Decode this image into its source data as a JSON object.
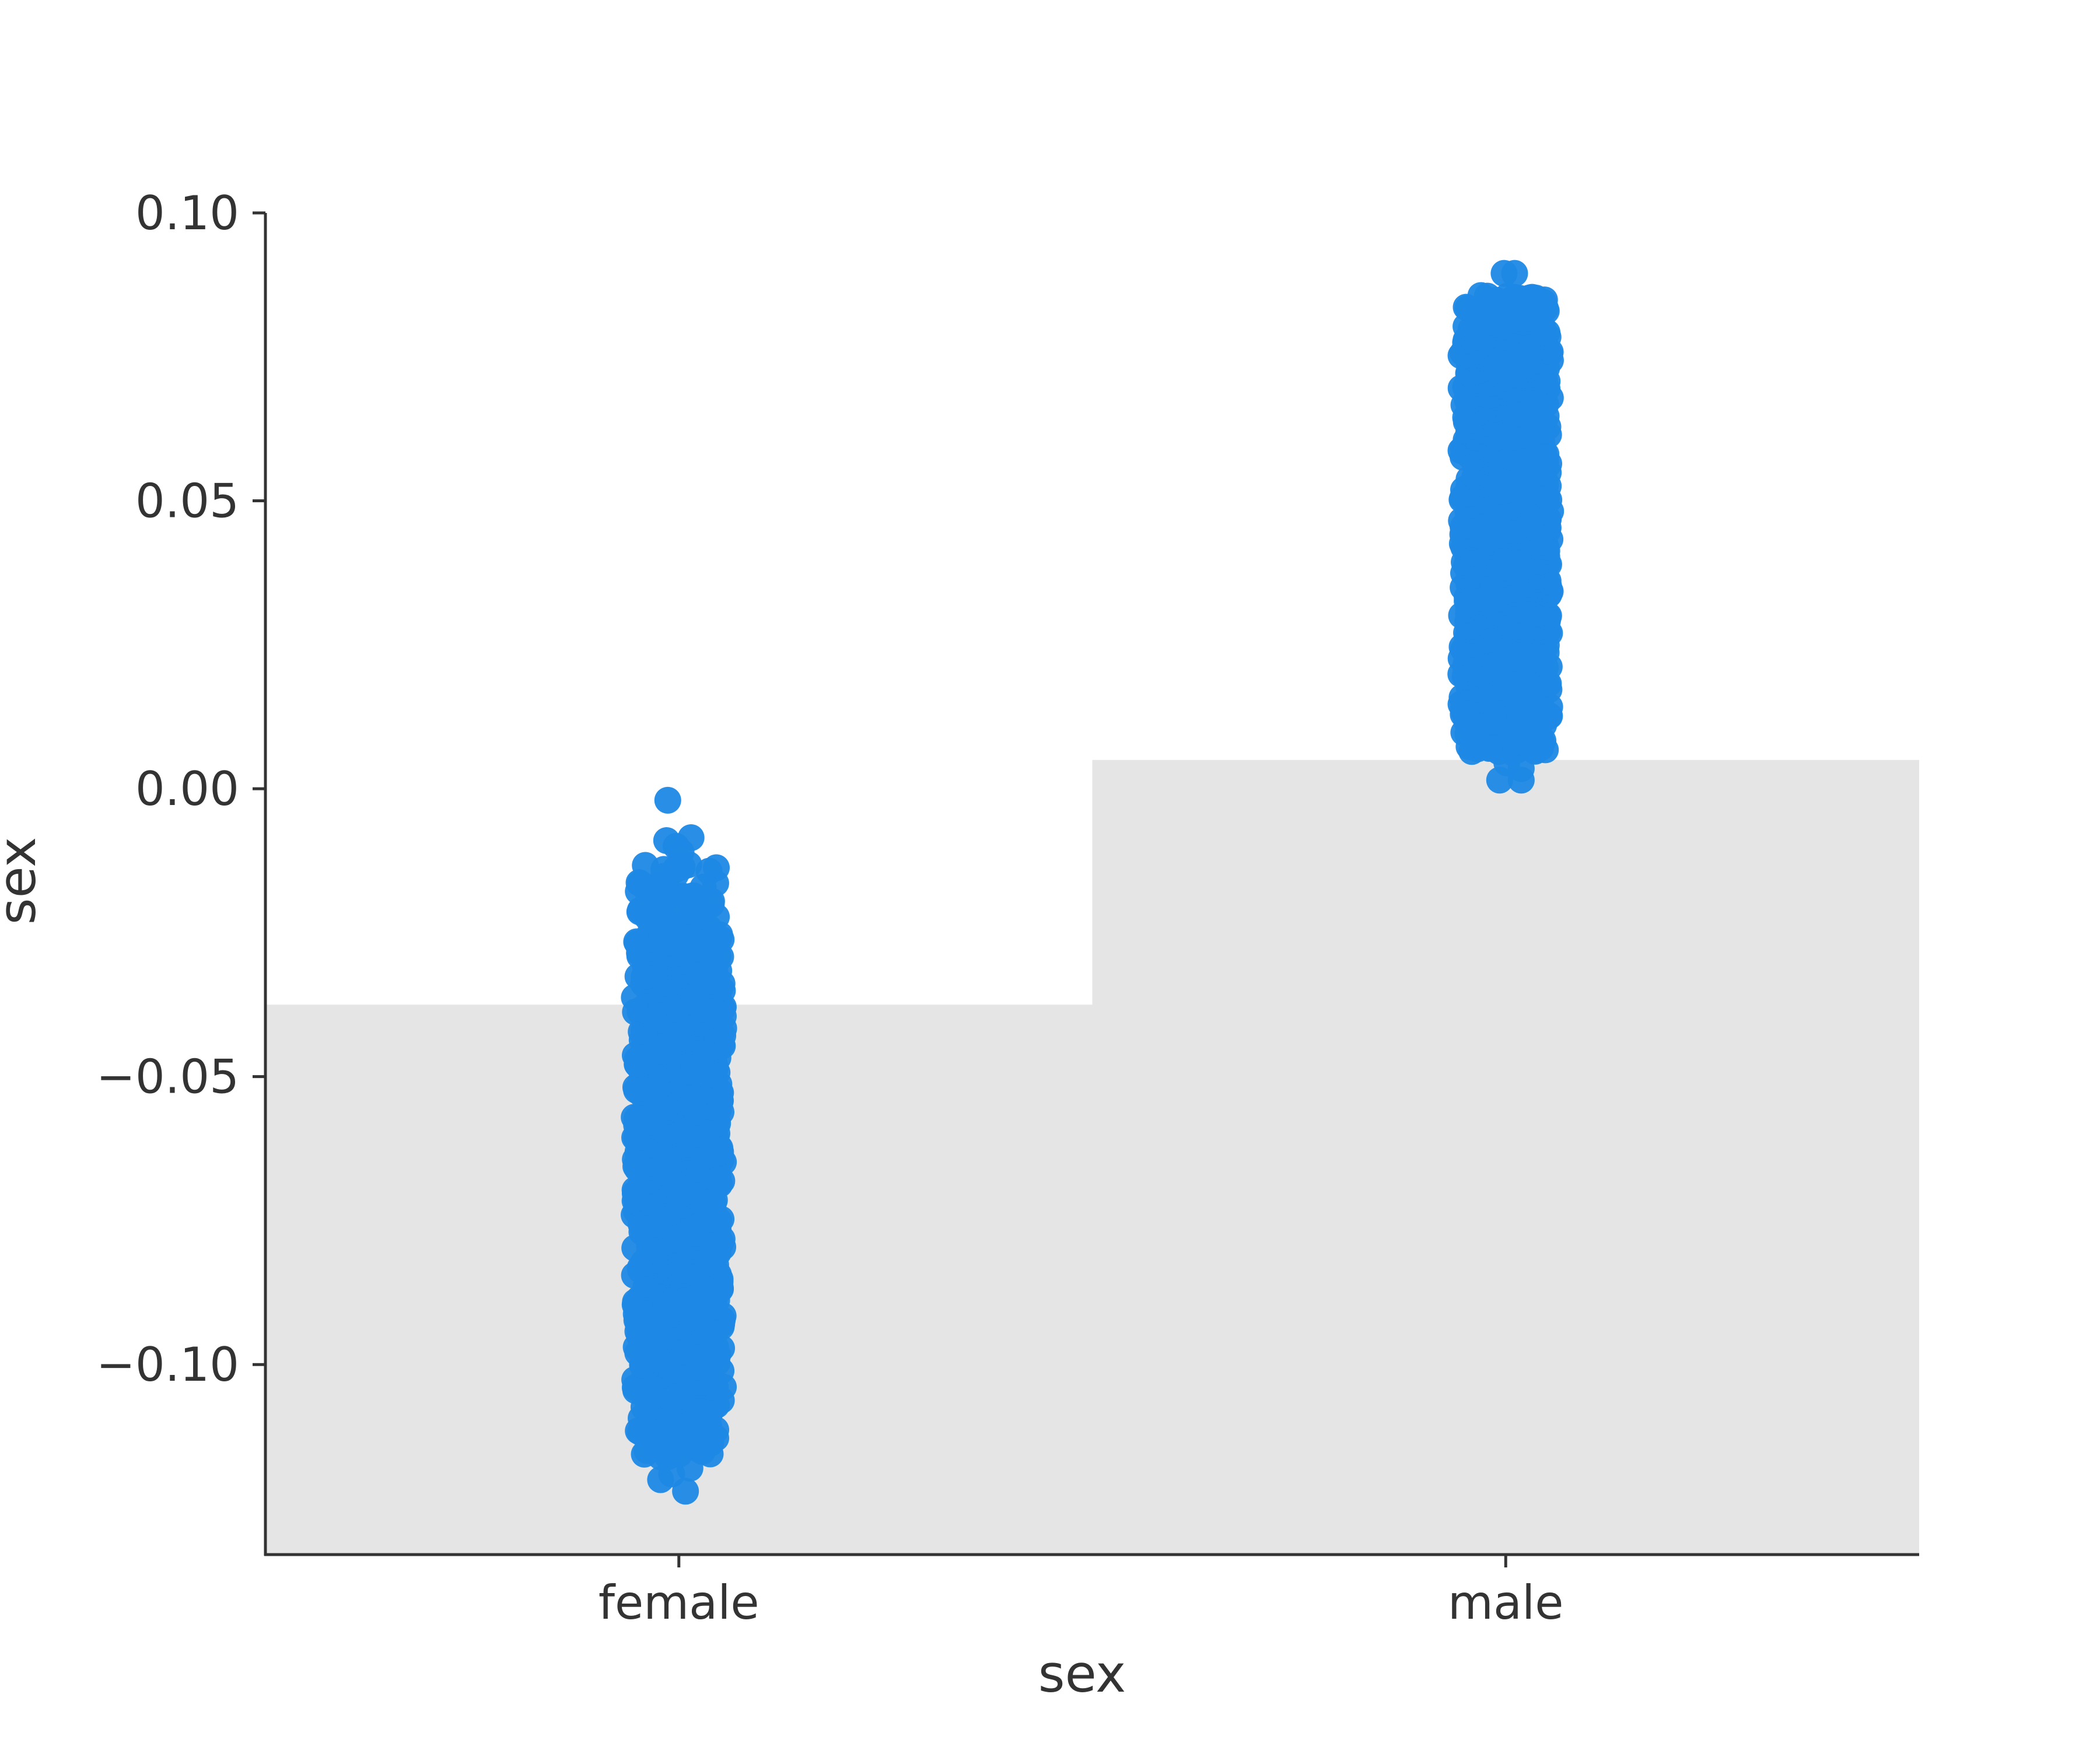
{
  "chart_data": {
    "type": "scatter",
    "subtype": "strip plot with bar-shaded background",
    "title": "",
    "xlabel": "sex",
    "ylabel": "sex",
    "categories": [
      "female",
      "male"
    ],
    "ylim": [
      -0.133,
      0.1
    ],
    "yticks": [
      0.1,
      0.05,
      0.0,
      -0.05,
      -0.1
    ],
    "ytick_labels": [
      "0.10",
      "0.05",
      "0.00",
      "−0.05",
      "−0.10"
    ],
    "bars": [
      {
        "category": "female",
        "value": -0.0375
      },
      {
        "category": "male",
        "value": 0.005
      }
    ],
    "series": [
      {
        "category": "female",
        "range": [
          -0.122,
          -0.002
        ],
        "dense_range": [
          -0.108,
          -0.026
        ],
        "outliers": [
          [
            -0.2,
            -0.002
          ],
          [
            -0.22,
            -0.009
          ],
          [
            0.22,
            -0.0085
          ],
          [
            -0.05,
            -0.01
          ],
          [
            0.04,
            -0.011
          ],
          [
            -0.27,
            -0.014
          ],
          [
            -0.06,
            -0.014
          ],
          [
            -0.33,
            -0.12
          ],
          [
            -0.13,
            -0.119
          ],
          [
            0.12,
            -0.122
          ],
          [
            0.2,
            -0.118
          ],
          [
            0.28,
            -0.114
          ],
          [
            -0.33,
            -0.116
          ],
          [
            -0.2,
            -0.116
          ]
        ]
      },
      {
        "category": "male",
        "range": [
          0.0015,
          0.0895
        ],
        "dense_range": [
          0.012,
          0.081
        ],
        "outliers": [
          [
            -0.03,
            0.0895
          ],
          [
            0.16,
            0.0895
          ],
          [
            -0.3,
            0.0825
          ],
          [
            0.3,
            0.0825
          ],
          [
            0.07,
            0.0835
          ],
          [
            -0.11,
            0.0015
          ],
          [
            0.28,
            0.0015
          ],
          [
            0.02,
            0.0045
          ],
          [
            0.28,
            0.0035
          ],
          [
            -0.3,
            0.007
          ],
          [
            0.26,
            0.0125
          ]
        ]
      }
    ],
    "colors": {
      "points": "#1e88e5",
      "bar": "#e5e5e5",
      "axis": "#333333"
    },
    "grid": false,
    "legend": "none"
  }
}
